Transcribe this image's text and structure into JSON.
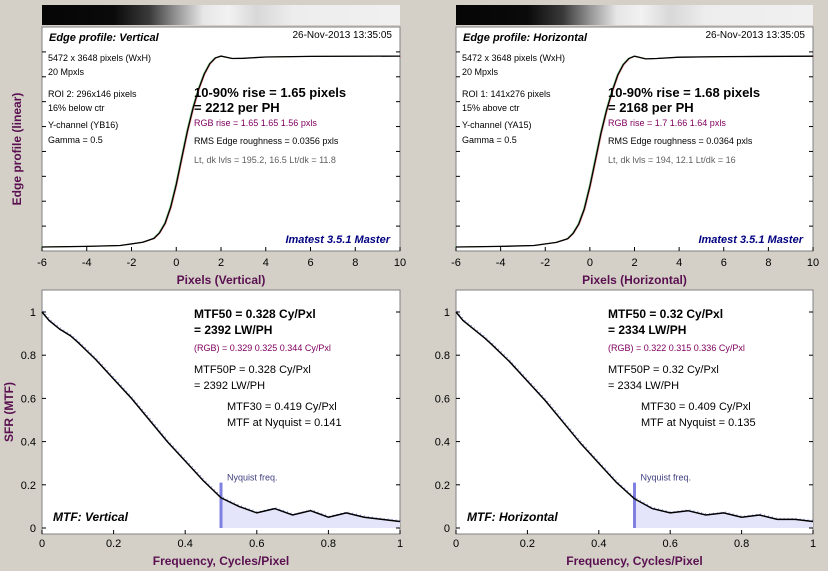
{
  "colors": {
    "background": "#d4d0c8",
    "plot_bg": "#ffffff",
    "axis_label": "#5a1050",
    "stamp": "#000080",
    "rgb_text": "#800060",
    "nyquist_line": "#8080e0",
    "nyquist_text": "#404080",
    "fill": "#e4e4fa",
    "curve": "#000000"
  },
  "chart_data": [
    {
      "id": "edge-vertical",
      "type": "line",
      "panel_title": "Edge profile: Vertical",
      "date": "26-Nov-2013 13:35:05",
      "xlabel": "Pixels (Vertical)",
      "ylabel": "Edge profile (linear)",
      "xlim": [
        -6,
        10
      ],
      "xticks": [
        -6,
        -4,
        -2,
        0,
        2,
        4,
        6,
        8,
        10
      ],
      "info_lines": [
        "5472 x 3648 pixels (WxH)",
        "20 Mpxls",
        "ROI 2:  296x146 pixels",
        "16% below ctr",
        "Y-channel  (YB16)",
        "Gamma = 0.5"
      ],
      "rise": "10-90% rise = 1.65 pixels",
      "per_ph": "= 2212 per PH",
      "rgb": "RGB rise = 1.65  1.65  1.56 pxls",
      "roughness": "RMS Edge roughness = 0.0356 pxls",
      "levels": "Lt, dk lvls = 195.2, 16.5    Lt/dk = 11.8",
      "stamp": "Imatest 3.5.1 Master",
      "x": [
        -6,
        -4,
        -2.5,
        -1.5,
        -1,
        -0.75,
        -0.5,
        -0.25,
        0,
        0.25,
        0.5,
        0.75,
        1,
        1.25,
        1.5,
        1.75,
        2,
        2.5,
        3,
        4,
        6,
        10
      ],
      "y": [
        0.0,
        0.003,
        0.008,
        0.025,
        0.045,
        0.075,
        0.125,
        0.21,
        0.33,
        0.47,
        0.61,
        0.73,
        0.83,
        0.91,
        0.965,
        0.995,
        1.005,
        0.992,
        0.993,
        1.0,
        1.003,
        1.005
      ]
    },
    {
      "id": "edge-horizontal",
      "type": "line",
      "panel_title": "Edge profile: Horizontal",
      "date": "26-Nov-2013 13:35:05",
      "xlabel": "Pixels (Horizontal)",
      "ylabel": "",
      "xlim": [
        -6,
        10
      ],
      "xticks": [
        -6,
        -4,
        -2,
        0,
        2,
        4,
        6,
        8,
        10
      ],
      "info_lines": [
        "5472 x 3648 pixels (WxH)",
        "20 Mpxls",
        "ROI 1:  141x276 pixels",
        "15% above ctr",
        "Y-channel   (YA15)",
        "Gamma = 0.5"
      ],
      "rise": "10-90% rise = 1.68 pixels",
      "per_ph": "= 2168 per PH",
      "rgb": "RGB rise = 1.7  1.66  1.64 pxls",
      "roughness": "RMS Edge roughness = 0.0364 pxls",
      "levels": "Lt, dk lvls = 194, 12.1    Lt/dk = 16",
      "stamp": "Imatest 3.5.1 Master",
      "x": [
        -6,
        -4,
        -2.5,
        -1.5,
        -1,
        -0.75,
        -0.5,
        -0.25,
        0,
        0.25,
        0.5,
        0.75,
        1,
        1.25,
        1.5,
        1.75,
        2,
        2.5,
        3,
        4,
        6,
        10
      ],
      "y": [
        0.0,
        0.003,
        0.008,
        0.024,
        0.043,
        0.072,
        0.12,
        0.2,
        0.32,
        0.46,
        0.6,
        0.72,
        0.82,
        0.905,
        0.96,
        0.992,
        1.004,
        0.99,
        0.992,
        0.999,
        1.002,
        1.004
      ]
    },
    {
      "id": "mtf-vertical",
      "type": "line",
      "panel_title": "MTF: Vertical",
      "xlabel": "Frequency, Cycles/Pixel",
      "ylabel": "SFR (MTF)",
      "xlim": [
        0,
        1
      ],
      "ylim": [
        0,
        1.05
      ],
      "xticks": [
        0,
        0.2,
        0.4,
        0.6,
        0.8,
        1
      ],
      "xtick_labels": [
        "0",
        "0.2",
        "0.4",
        "0.6",
        "0.8",
        "1"
      ],
      "yticks": [
        0,
        0.2,
        0.4,
        0.6,
        0.8,
        1
      ],
      "ytick_labels": [
        "0",
        "0.2",
        "0.4",
        "0.6",
        "0.8",
        "1"
      ],
      "mtf50": "MTF50 = 0.328 Cy/Pxl",
      "lwph": "= 2392 LW/PH",
      "rgb": "(RGB) = 0.329  0.325  0.344 Cy/Pxl",
      "mtf50p": "MTF50P = 0.328 Cy/Pxl",
      "lwph2": "= 2392 LW/PH",
      "mtf30": "MTF30 = 0.419 Cy/Pxl",
      "nyq_text": "MTF at Nyquist = 0.141",
      "nyq_label": "Nyquist freq.",
      "nyquist": 0.5,
      "x": [
        0,
        0.02,
        0.05,
        0.08,
        0.1,
        0.15,
        0.2,
        0.25,
        0.3,
        0.35,
        0.4,
        0.45,
        0.5,
        0.55,
        0.6,
        0.65,
        0.7,
        0.75,
        0.8,
        0.85,
        0.9,
        0.95,
        1.0
      ],
      "y": [
        1.0,
        0.96,
        0.92,
        0.89,
        0.86,
        0.78,
        0.69,
        0.6,
        0.5,
        0.4,
        0.31,
        0.22,
        0.14,
        0.1,
        0.07,
        0.09,
        0.06,
        0.08,
        0.05,
        0.07,
        0.05,
        0.04,
        0.03
      ]
    },
    {
      "id": "mtf-horizontal",
      "type": "line",
      "panel_title": "MTF: Horizontal",
      "xlabel": "Frequency, Cycles/Pixel",
      "ylabel": "",
      "xlim": [
        0,
        1
      ],
      "ylim": [
        0,
        1.05
      ],
      "xticks": [
        0,
        0.2,
        0.4,
        0.6,
        0.8,
        1
      ],
      "xtick_labels": [
        "0",
        "0.2",
        "0.4",
        "0.6",
        "0.8",
        "1"
      ],
      "yticks": [
        0,
        0.2,
        0.4,
        0.6,
        0.8,
        1
      ],
      "ytick_labels": [
        "0",
        "0.2",
        "0.4",
        "0.6",
        "0.8",
        "1"
      ],
      "mtf50": "MTF50 = 0.32 Cy/Pxl",
      "lwph": "= 2334 LW/PH",
      "rgb": "(RGB) = 0.322  0.315  0.336 Cy/Pxl",
      "mtf50p": "MTF50P = 0.32 Cy/Pxl",
      "lwph2": "= 2334 LW/PH",
      "mtf30": "MTF30 = 0.409 Cy/Pxl",
      "nyq_text": "MTF at Nyquist = 0.135",
      "nyq_label": "Nyquist freq.",
      "nyquist": 0.5,
      "x": [
        0,
        0.02,
        0.05,
        0.08,
        0.1,
        0.15,
        0.2,
        0.25,
        0.3,
        0.35,
        0.4,
        0.45,
        0.5,
        0.55,
        0.6,
        0.65,
        0.7,
        0.75,
        0.8,
        0.85,
        0.9,
        0.95,
        1.0
      ],
      "y": [
        1.0,
        0.96,
        0.92,
        0.88,
        0.85,
        0.77,
        0.68,
        0.59,
        0.49,
        0.39,
        0.3,
        0.21,
        0.135,
        0.09,
        0.07,
        0.08,
        0.06,
        0.07,
        0.05,
        0.06,
        0.04,
        0.04,
        0.03
      ]
    }
  ]
}
